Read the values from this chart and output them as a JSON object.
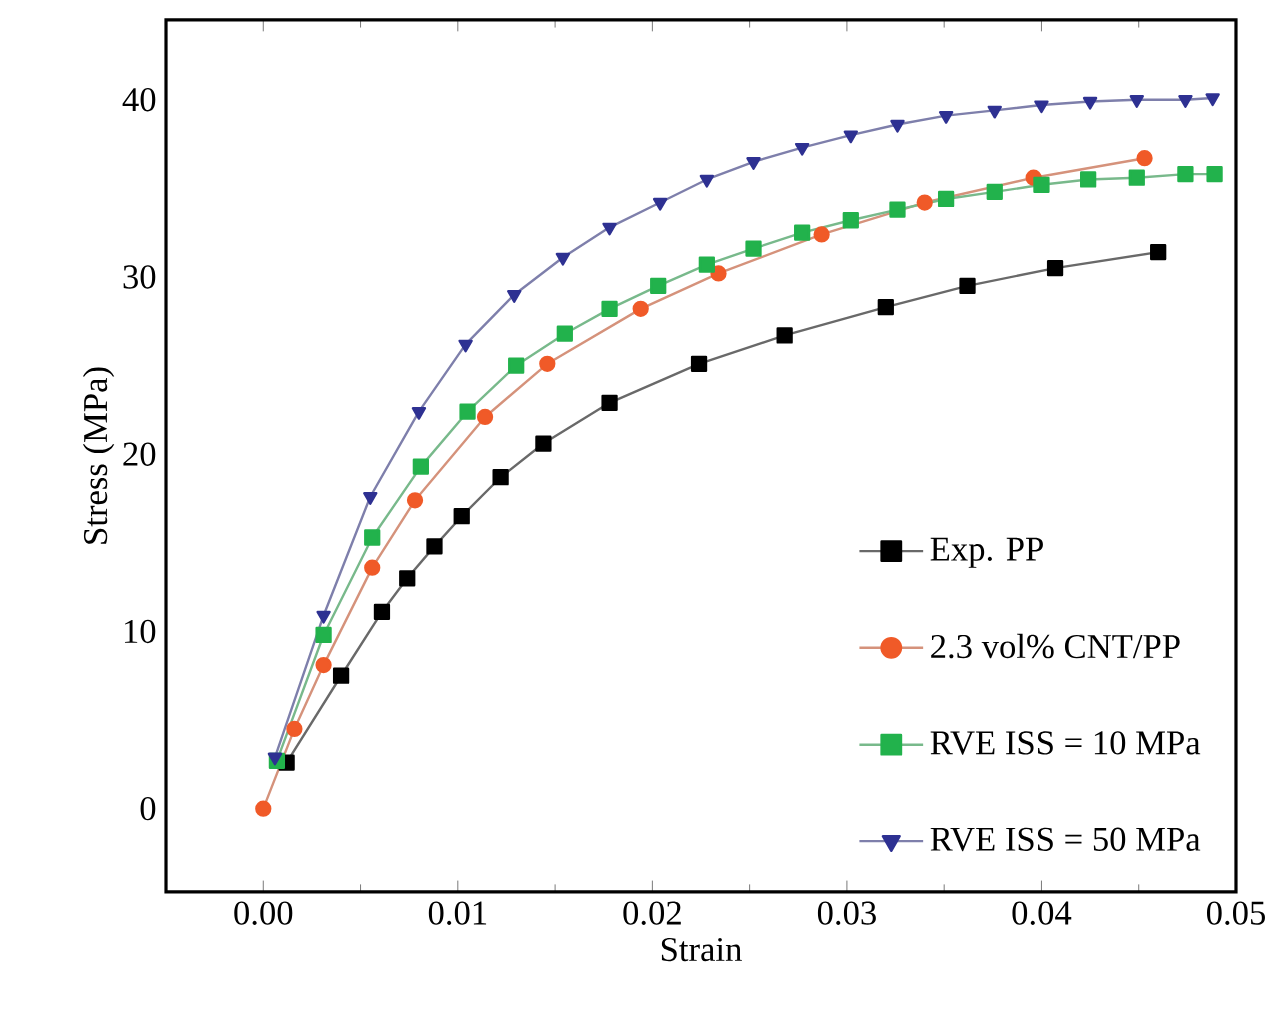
{
  "chart_data": {
    "type": "line",
    "xlabel": "Strain",
    "ylabel": "Stress (MPa)",
    "xlim": [
      -0.005,
      0.05
    ],
    "ylim": [
      -4.7,
      44.5
    ],
    "xticks": [
      {
        "value": 0,
        "label": "0.00"
      },
      {
        "value": 0.01,
        "label": "0.01"
      },
      {
        "value": 0.02,
        "label": "0.02"
      },
      {
        "value": 0.03,
        "label": "0.03"
      },
      {
        "value": 0.04,
        "label": "0.04"
      },
      {
        "value": 0.05,
        "label": "0.05"
      }
    ],
    "yticks": [
      0,
      10,
      20,
      30,
      40
    ],
    "grid": false,
    "legend": "bottom right",
    "line_style": "solid",
    "series": [
      {
        "name": "Exp. PP",
        "color": "#000000",
        "marker": "square",
        "x": [
          0.0012,
          0.004,
          0.0061,
          0.0074,
          0.0088,
          0.0102,
          0.0122,
          0.0144,
          0.0178,
          0.0224,
          0.0268,
          0.032,
          0.0362,
          0.0407,
          0.046
        ],
        "values": [
          2.6,
          7.5,
          11.1,
          13.0,
          14.8,
          16.5,
          18.7,
          20.6,
          22.9,
          25.1,
          26.7,
          28.3,
          29.5,
          30.5,
          31.4
        ]
      },
      {
        "name": "2.3 vol% CNT/PP",
        "color": "#f05a28",
        "marker": "circle",
        "x": [
          0,
          0.0016,
          0.0031,
          0.0056,
          0.0078,
          0.0114,
          0.0146,
          0.0194,
          0.0234,
          0.0287,
          0.034,
          0.0396,
          0.0453
        ],
        "values": [
          0,
          4.5,
          8.1,
          13.6,
          17.4,
          22.1,
          25.1,
          28.2,
          30.2,
          32.4,
          34.2,
          35.6,
          36.7
        ]
      },
      {
        "name": "RVE ISS = 10 MPa",
        "color": "#22b24c",
        "marker": "square",
        "x": [
          0.0007,
          0.0031,
          0.0056,
          0.0081,
          0.0105,
          0.013,
          0.0155,
          0.0178,
          0.0203,
          0.0228,
          0.0252,
          0.0277,
          0.0302,
          0.0326,
          0.0351,
          0.0376,
          0.04,
          0.0424,
          0.0449,
          0.0474,
          0.0489
        ],
        "values": [
          2.7,
          9.8,
          15.3,
          19.3,
          22.4,
          25.0,
          26.8,
          28.2,
          29.5,
          30.7,
          31.6,
          32.5,
          33.2,
          33.8,
          34.4,
          34.8,
          35.2,
          35.5,
          35.6,
          35.8,
          35.8
        ]
      },
      {
        "name": "RVE ISS = 50 MPa",
        "color": "#2e3192",
        "marker": "triangle",
        "x": [
          0.0006,
          0.0031,
          0.0055,
          0.008,
          0.0104,
          0.0129,
          0.0154,
          0.0178,
          0.0204,
          0.0228,
          0.0252,
          0.0277,
          0.0302,
          0.0326,
          0.0351,
          0.0376,
          0.04,
          0.0425,
          0.0449,
          0.0474,
          0.0488
        ],
        "values": [
          2.9,
          10.9,
          17.6,
          22.4,
          26.2,
          29.0,
          31.1,
          32.8,
          34.2,
          35.5,
          36.5,
          37.3,
          38.0,
          38.6,
          39.1,
          39.4,
          39.7,
          39.9,
          40.0,
          40.0,
          40.1
        ]
      }
    ]
  }
}
